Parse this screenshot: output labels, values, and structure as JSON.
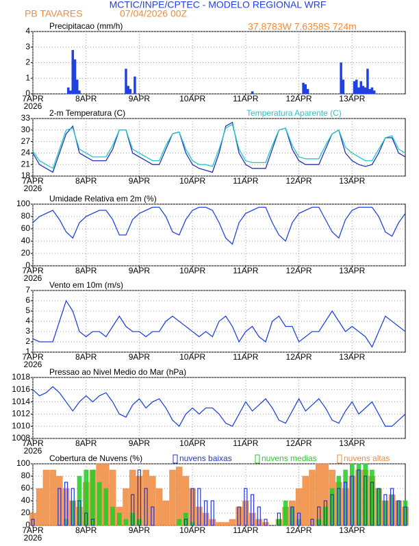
{
  "header": {
    "title": "MCTIC/INPE/CPTEC - MODELO REGIONAL WRF",
    "station": "PB TAVARES",
    "run": "07/04/2026 00Z",
    "location": "37.8783W 7.6358S 724m"
  },
  "time": {
    "x": [
      0,
      3,
      6,
      9,
      12,
      15,
      18,
      21,
      24,
      27,
      30,
      33,
      36,
      39,
      42,
      45,
      48,
      51,
      54,
      57,
      60,
      63,
      66,
      69,
      72,
      75,
      78,
      81,
      84,
      87,
      90,
      93,
      96,
      99,
      102,
      105,
      108,
      111,
      114,
      117,
      120,
      123,
      126,
      129,
      132,
      135,
      138,
      141,
      144,
      147,
      150,
      153,
      156,
      159,
      162,
      165,
      168
    ],
    "xlim": [
      0,
      168
    ],
    "xticks": [
      {
        "value": 0,
        "label": "7APR"
      },
      {
        "value": 24,
        "label": "8APR"
      },
      {
        "value": 48,
        "label": "9APR"
      },
      {
        "value": 72,
        "label": "10APR"
      },
      {
        "value": 96,
        "label": "11APR"
      },
      {
        "value": 120,
        "label": "12APR"
      },
      {
        "value": 144,
        "label": "13APR"
      }
    ],
    "year": "2026"
  },
  "chart_data": [
    {
      "type": "bar",
      "title": "Precipitacao (mm/h)",
      "ylim": [
        0,
        4
      ],
      "yticks": [
        0,
        1,
        2,
        3,
        4
      ],
      "grid": true,
      "x": [
        16,
        17,
        18,
        19,
        20,
        21,
        42,
        43,
        44,
        46,
        99,
        122,
        123,
        124,
        139,
        140,
        145,
        146,
        147,
        148,
        149,
        150,
        151,
        152,
        153,
        154
      ],
      "series": [
        {
          "color": "#2040e0",
          "values": [
            0.4,
            0.2,
            2.8,
            2.2,
            0.9,
            0.2,
            1.6,
            0.5,
            0.3,
            1.1,
            0.15,
            0.7,
            0.6,
            0.3,
            2.0,
            0.9,
            0.8,
            0.9,
            0.4,
            0.8,
            0.5,
            0.4,
            1.6,
            0.3,
            0.4,
            0.2
          ]
        }
      ]
    },
    {
      "type": "line",
      "title": "2-m Temperatura (C)",
      "ylim": [
        18,
        33
      ],
      "yticks": [
        18,
        21,
        24,
        27,
        30,
        33
      ],
      "grid": true,
      "series": [
        {
          "color": "#2233bb",
          "values": [
            24,
            21,
            20,
            19,
            24,
            29,
            31,
            24,
            23,
            22,
            22,
            22,
            25,
            30,
            30,
            24,
            23,
            22,
            21,
            21,
            25,
            29,
            29.5,
            24,
            21,
            20,
            19.5,
            19,
            24,
            31,
            32,
            24,
            21,
            20,
            20,
            20,
            25,
            30,
            30.5,
            25,
            22,
            21,
            21,
            21,
            25,
            29,
            30,
            24,
            22,
            21,
            20.5,
            21,
            24,
            28,
            28,
            24,
            23
          ]
        },
        {
          "name": "Temperatura Aparente (C)",
          "color": "#20c8c8",
          "values": [
            24.5,
            22,
            21,
            20,
            25,
            30,
            30.5,
            25,
            24,
            23,
            23,
            23,
            26,
            30,
            30,
            25,
            24,
            23,
            22,
            22,
            26,
            29,
            29.5,
            25,
            22,
            21,
            21,
            20.5,
            25,
            30.5,
            31.5,
            25,
            22,
            21.5,
            21.5,
            21.5,
            26,
            30,
            30.5,
            26,
            23,
            22.5,
            22.5,
            22.5,
            26,
            29,
            30,
            25.5,
            24,
            23,
            22,
            22,
            25,
            28,
            28.5,
            25,
            24
          ]
        }
      ]
    },
    {
      "type": "line",
      "title": "Umidade Relativa em 2m (%)",
      "ylim": [
        0,
        100
      ],
      "yticks": [
        0,
        20,
        40,
        60,
        80,
        100
      ],
      "grid": true,
      "series": [
        {
          "color": "#2244dd",
          "values": [
            70,
            80,
            85,
            90,
            75,
            55,
            45,
            70,
            80,
            85,
            90,
            90,
            75,
            50,
            50,
            75,
            85,
            90,
            95,
            95,
            80,
            55,
            50,
            75,
            90,
            95,
            95,
            90,
            70,
            45,
            35,
            70,
            85,
            90,
            95,
            95,
            70,
            50,
            40,
            70,
            85,
            90,
            95,
            95,
            75,
            55,
            45,
            75,
            90,
            95,
            95,
            95,
            80,
            55,
            48,
            70,
            85
          ]
        }
      ]
    },
    {
      "type": "line",
      "title": "Vento em 10m (m/s)",
      "ylim": [
        1,
        7
      ],
      "yticks": [
        1,
        2,
        3,
        4,
        5,
        6,
        7
      ],
      "grid": true,
      "series": [
        {
          "color": "#2244dd",
          "values": [
            2.3,
            2,
            2,
            2,
            4,
            6,
            5,
            3,
            2.5,
            3,
            3,
            2.5,
            3.5,
            4.5,
            3.5,
            3,
            3,
            2.5,
            3,
            3,
            4,
            4.5,
            4,
            3.5,
            3,
            2.5,
            3,
            2.5,
            4,
            4.5,
            3.5,
            2,
            3,
            3.5,
            2.5,
            2,
            4,
            4.5,
            3.5,
            3.5,
            2,
            2.5,
            3,
            3,
            4,
            5,
            4,
            3,
            3.5,
            3,
            2.5,
            1.5,
            3,
            4.5,
            4,
            3.5,
            3
          ]
        }
      ]
    },
    {
      "type": "line",
      "title": "Pressao ao Nivel Medio do Mar (hPa)",
      "ylim": [
        1008,
        1018
      ],
      "yticks": [
        1008,
        1010,
        1012,
        1014,
        1016,
        1018
      ],
      "grid": true,
      "series": [
        {
          "color": "#2244dd",
          "values": [
            1016,
            1015,
            1015.5,
            1016.5,
            1015.5,
            1014,
            1012.5,
            1014,
            1015,
            1014,
            1015,
            1015.5,
            1014,
            1012,
            1011.5,
            1013.5,
            1014.5,
            1013,
            1014,
            1014.5,
            1013,
            1011,
            1010,
            1012,
            1013,
            1012,
            1013,
            1013,
            1012,
            1010.5,
            1010,
            1012,
            1014,
            1012.5,
            1013.5,
            1014.5,
            1013,
            1011,
            1010.5,
            1012.5,
            1014.5,
            1012.5,
            1013.5,
            1014.5,
            1013,
            1011,
            1010.5,
            1012.5,
            1014,
            1012,
            1013,
            1014,
            1012,
            1010,
            1010,
            1011,
            1012
          ]
        }
      ]
    },
    {
      "type": "bar",
      "title": "Cobertura de Nuvens (%)",
      "ylim": [
        0,
        100
      ],
      "yticks": [
        0,
        20,
        40,
        60,
        80,
        100
      ],
      "grid": true,
      "series": [
        {
          "name": "nuvens baixas",
          "color": "#2233dd",
          "values": [
            10,
            0,
            0,
            0,
            60,
            70,
            60,
            40,
            20,
            10,
            0,
            0,
            0,
            0,
            0,
            50,
            90,
            60,
            30,
            0,
            0,
            0,
            0,
            10,
            60,
            60,
            40,
            40,
            0,
            0,
            0,
            30,
            60,
            50,
            30,
            10,
            0,
            20,
            0,
            30,
            20,
            0,
            10,
            30,
            40,
            50,
            60,
            70,
            80,
            90,
            80,
            70,
            60,
            50,
            60,
            40,
            30
          ]
        },
        {
          "name": "nuvens medias",
          "color": "#22cc22",
          "values": [
            0,
            0,
            0,
            0,
            0,
            10,
            40,
            80,
            90,
            90,
            70,
            60,
            30,
            20,
            10,
            20,
            10,
            0,
            0,
            0,
            0,
            0,
            10,
            20,
            5,
            0,
            0,
            0,
            0,
            0,
            0,
            0,
            0,
            0,
            0,
            0,
            0,
            10,
            40,
            30,
            10,
            0,
            0,
            10,
            30,
            60,
            80,
            90,
            100,
            100,
            100,
            90,
            60,
            40,
            50,
            40,
            40
          ]
        },
        {
          "name": "nuvens altas",
          "color": "#f08a3c",
          "values": [
            20,
            60,
            90,
            90,
            80,
            60,
            40,
            30,
            70,
            90,
            100,
            100,
            90,
            30,
            60,
            90,
            80,
            90,
            80,
            60,
            40,
            90,
            95,
            80,
            60,
            30,
            20,
            10,
            5,
            5,
            10,
            30,
            40,
            20,
            10,
            5,
            0,
            10,
            30,
            40,
            60,
            80,
            90,
            100,
            100,
            90,
            70,
            60,
            80,
            90,
            90,
            80,
            60,
            40,
            50,
            40,
            30
          ]
        }
      ]
    }
  ]
}
